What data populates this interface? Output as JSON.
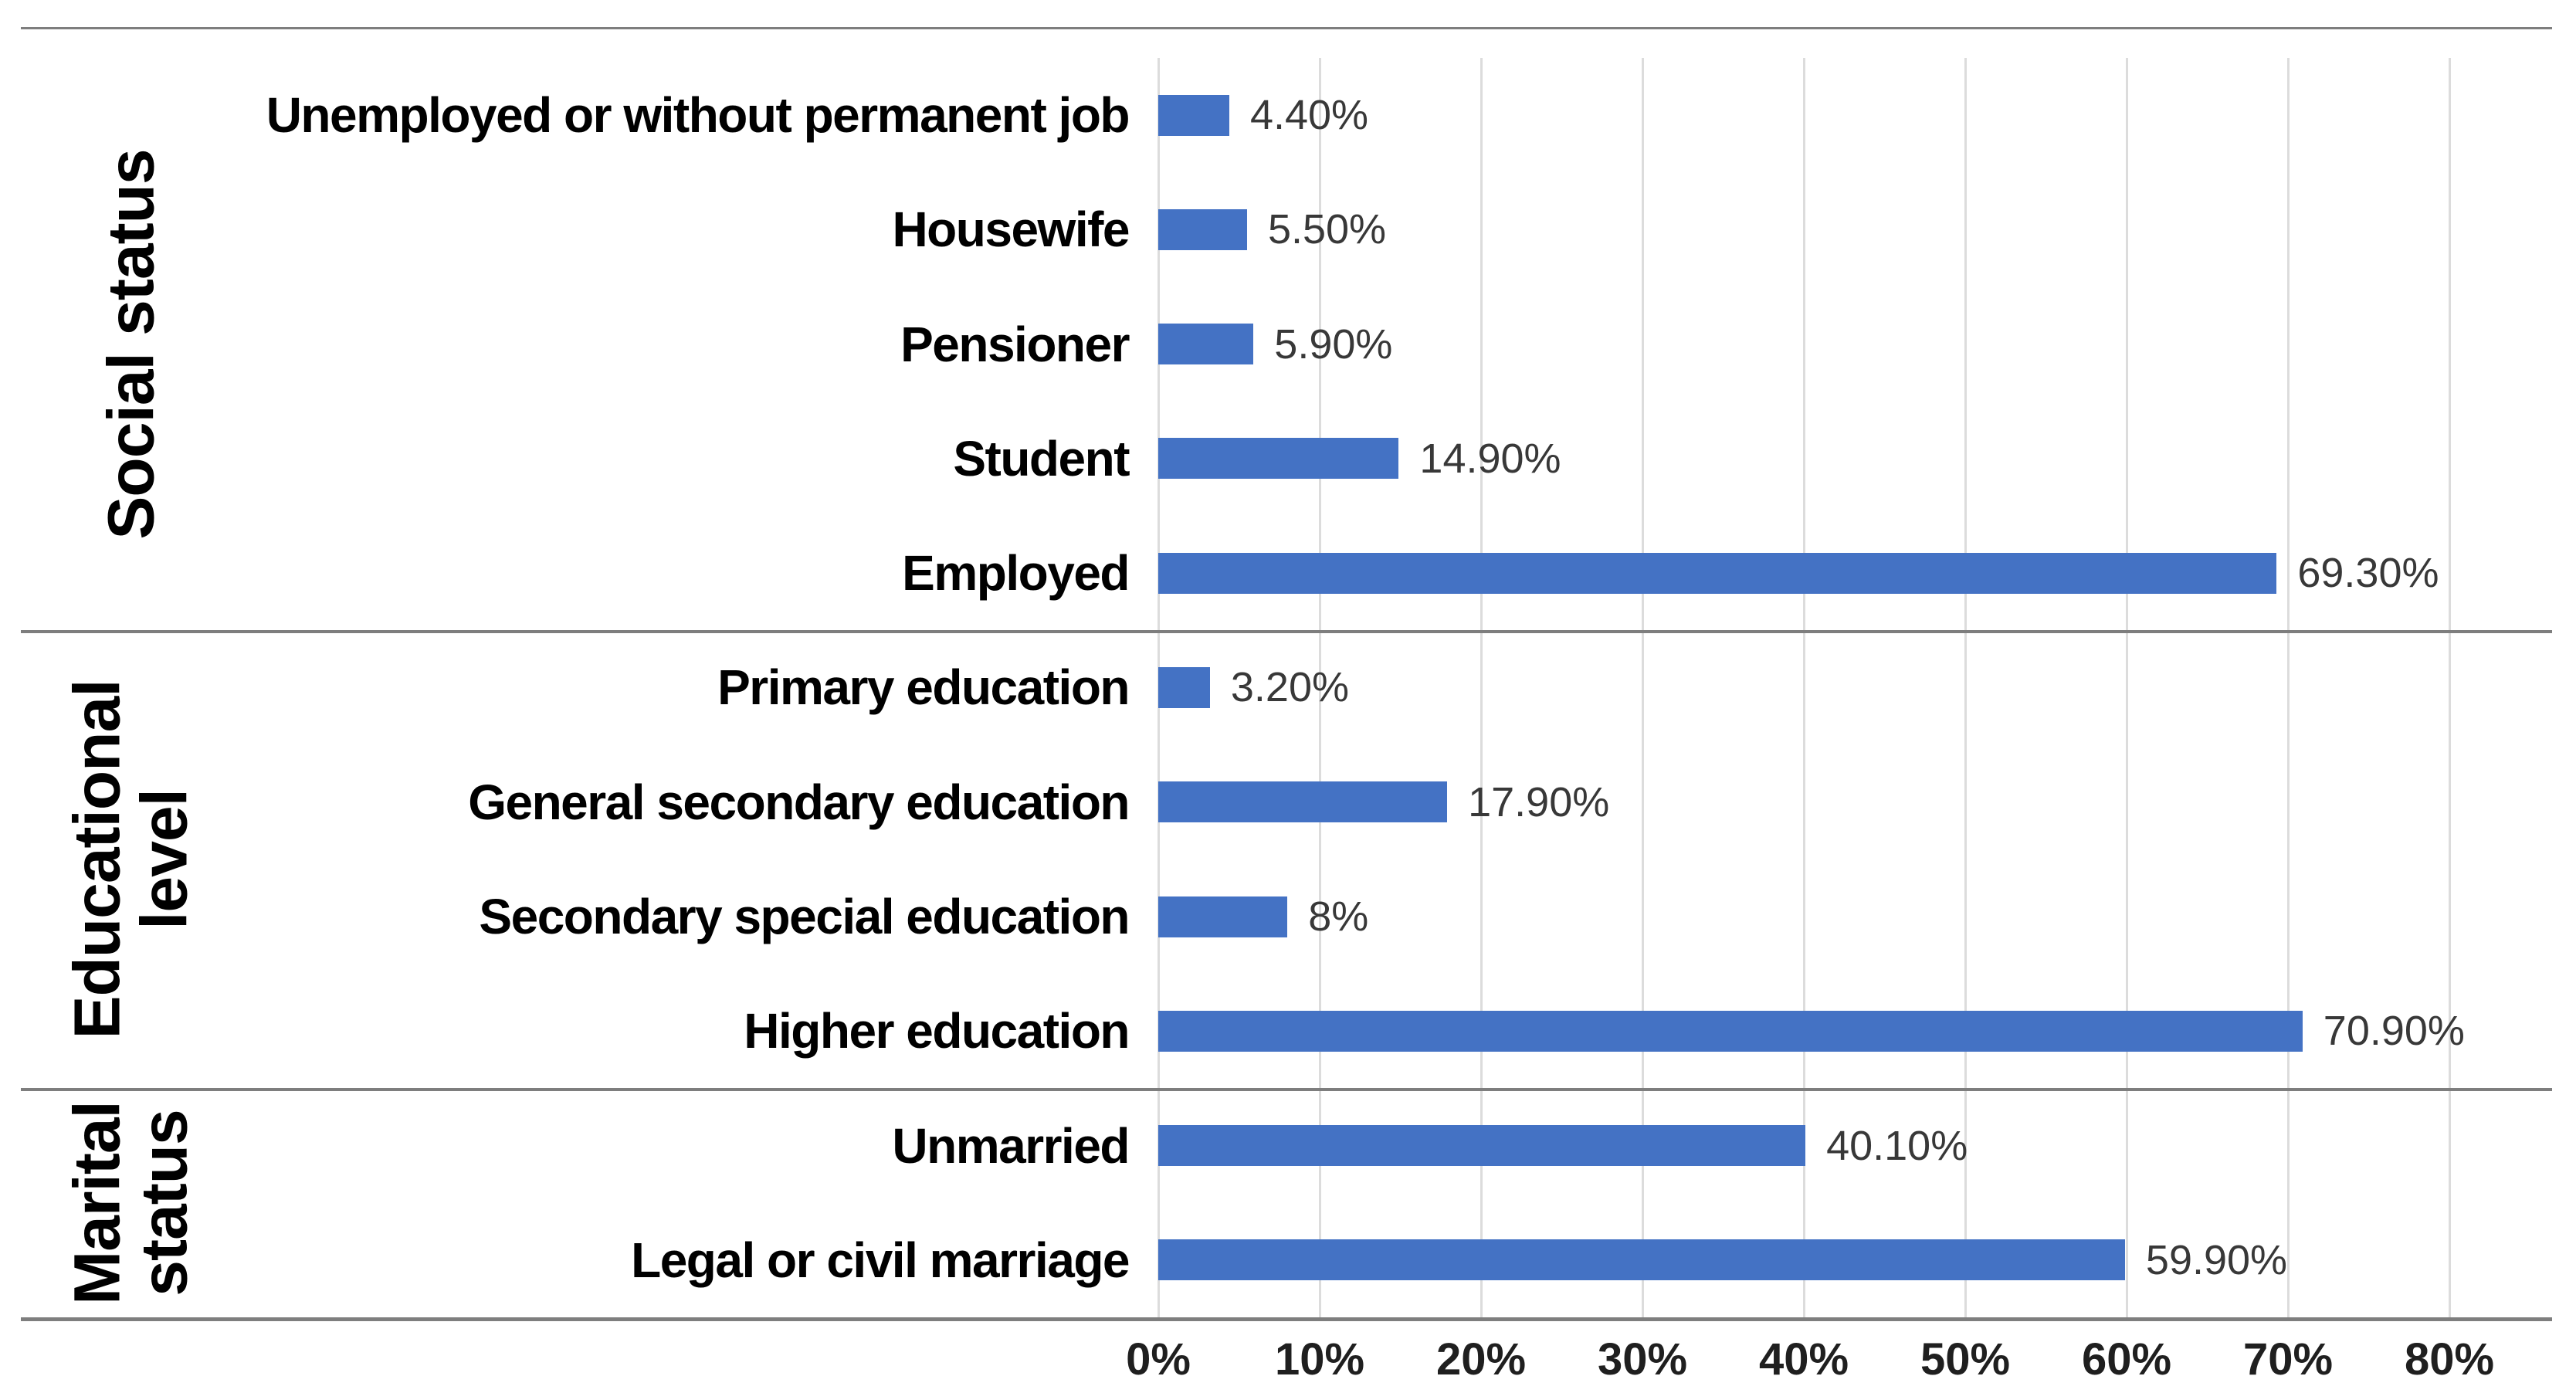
{
  "chart_data": {
    "type": "bar",
    "orientation": "horizontal",
    "title": "",
    "xlabel": "",
    "ylabel": "",
    "x_axis": {
      "min": 0,
      "max": 80,
      "tick_step": 10,
      "grid": true,
      "ticks": [
        "0%",
        "10%",
        "20%",
        "30%",
        "40%",
        "50%",
        "60%",
        "70%",
        "80%"
      ]
    },
    "legend": "none",
    "bar_color": "#4472C4",
    "gridline_color": "#DCDCDC",
    "separator_color": "#7E7E7E",
    "category_label_color": "#000000",
    "value_label_color": "#383838",
    "tick_label_color": "#1F1F1F",
    "groups": [
      {
        "label": "Social status",
        "label_lines": [
          "Social status"
        ],
        "items": [
          {
            "category": "Unemployed or without permanent job",
            "value": 4.4,
            "value_label": "4.40%"
          },
          {
            "category": "Housewife",
            "value": 5.5,
            "value_label": "5.50%"
          },
          {
            "category": "Pensioner",
            "value": 5.9,
            "value_label": "5.90%"
          },
          {
            "category": "Student",
            "value": 14.9,
            "value_label": "14.90%"
          },
          {
            "category": "Employed",
            "value": 69.3,
            "value_label": "69.30%"
          }
        ]
      },
      {
        "label": "Educational level",
        "label_lines": [
          "Educational",
          "level"
        ],
        "items": [
          {
            "category": "Primary education",
            "value": 3.2,
            "value_label": "3.20%"
          },
          {
            "category": "General secondary education",
            "value": 17.9,
            "value_label": "17.90%"
          },
          {
            "category": "Secondary special education",
            "value": 8,
            "value_label": "8%"
          },
          {
            "category": "Higher education",
            "value": 70.9,
            "value_label": "70.90%"
          }
        ]
      },
      {
        "label": "Marital status",
        "label_lines": [
          "Marital",
          "status"
        ],
        "items": [
          {
            "category": "Unmarried",
            "value": 40.1,
            "value_label": "40.10%"
          },
          {
            "category": "Legal or civil marriage",
            "value": 59.9,
            "value_label": "59.90%"
          }
        ]
      }
    ]
  }
}
